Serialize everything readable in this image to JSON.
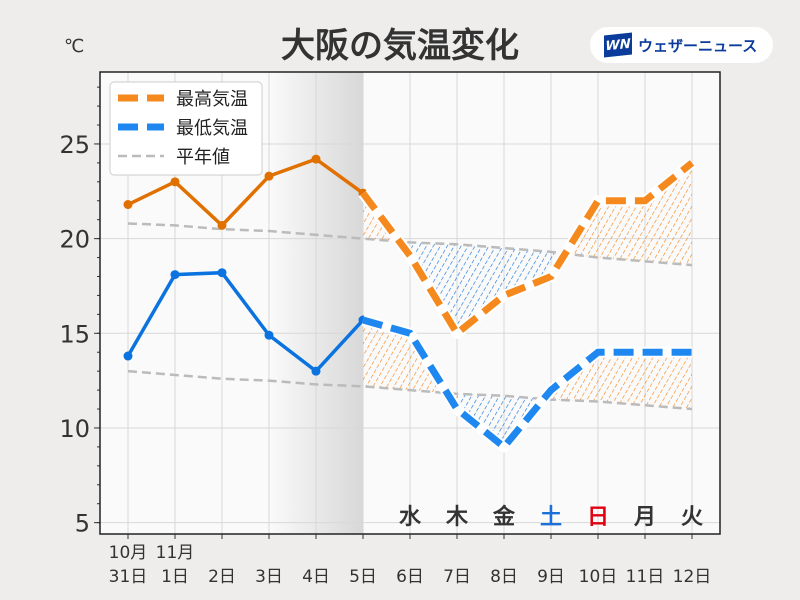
{
  "header": {
    "title": "大阪の気温変化",
    "unit": "℃",
    "logo_mark": "WN",
    "logo_text": "ウェザーニュース"
  },
  "chart_data": {
    "type": "line",
    "title": "大阪の気温変化",
    "ylabel": "℃",
    "ylim": [
      4.4,
      28.8
    ],
    "yticks": [
      5,
      10,
      15,
      20,
      25
    ],
    "grid": true,
    "legend_position": "top-left",
    "x_month_labels": [
      "10月",
      "11月"
    ],
    "categories": [
      "31日",
      "1日",
      "2日",
      "3日",
      "4日",
      "5日",
      "6日",
      "7日",
      "8日",
      "9日",
      "10日",
      "11日",
      "12日"
    ],
    "weekdays": [
      {
        "index": 6,
        "label": "水",
        "color": "#333333"
      },
      {
        "index": 7,
        "label": "木",
        "color": "#333333"
      },
      {
        "index": 8,
        "label": "金",
        "color": "#333333"
      },
      {
        "index": 9,
        "label": "土",
        "color": "#1a6fd8"
      },
      {
        "index": 10,
        "label": "日",
        "color": "#e0000f"
      },
      {
        "index": 11,
        "label": "月",
        "color": "#333333"
      },
      {
        "index": 12,
        "label": "火",
        "color": "#333333"
      }
    ],
    "observed_until_index": 5,
    "shaded_range": [
      3,
      5
    ],
    "series": [
      {
        "name": "最高気温",
        "color": "#e07000",
        "forecast_color": "#f5891e",
        "values": [
          21.8,
          23.0,
          20.7,
          23.3,
          24.2,
          22.4,
          19.1,
          15.0,
          17.0,
          18.0,
          22.0,
          22.0,
          24.0
        ]
      },
      {
        "name": "最低気温",
        "color": "#0a73e0",
        "forecast_color": "#1e88f0",
        "values": [
          13.8,
          18.1,
          18.2,
          14.9,
          13.0,
          15.7,
          15.0,
          11.0,
          9.0,
          12.0,
          14.0,
          14.0,
          14.0
        ]
      },
      {
        "name": "平年値",
        "color": "#bbbbbb",
        "high": [
          20.8,
          20.7,
          20.5,
          20.4,
          20.2,
          20.0,
          19.8,
          19.7,
          19.5,
          19.3,
          19.0,
          18.8,
          18.6
        ],
        "low": [
          13.0,
          12.8,
          12.6,
          12.5,
          12.3,
          12.2,
          12.0,
          11.8,
          11.7,
          11.5,
          11.4,
          11.2,
          11.0
        ]
      }
    ],
    "above_normal_color": "#f5891e",
    "below_normal_color": "#1e78d8"
  }
}
